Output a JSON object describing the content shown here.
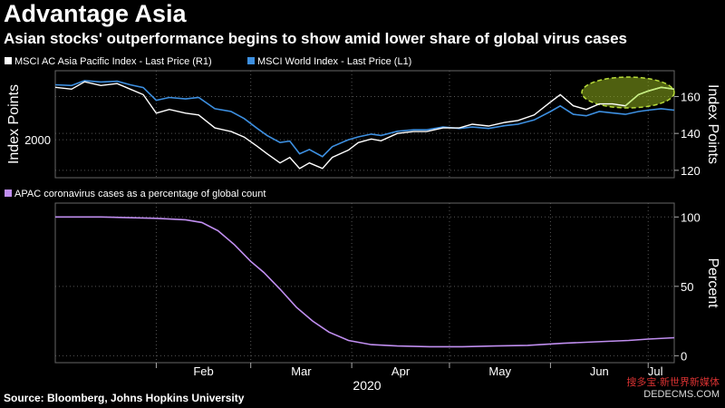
{
  "title": "Advantage Asia",
  "subtitle": "Asian stocks' outperformance begins to show amid lower share of global virus cases",
  "source": "Source: Bloomberg, Johns Hopkins University",
  "watermark": {
    "line1": "搜多宝·新世界新媒体",
    "line2": "DEDECMS.COM"
  },
  "colors": {
    "background": "#000000",
    "asia_line": "#ffffff",
    "world_line": "#3d8fe0",
    "asia_highlight": "#c7f080",
    "cases_line": "#c08ef0",
    "highlight_ellipse": "#b8dc3a",
    "grid": "#555555"
  },
  "chart_data": [
    {
      "type": "line",
      "legend_placement": "top-left",
      "left_axis": {
        "label": "Index Points",
        "ticks": [
          2000
        ],
        "range": [
          1730,
          2490
        ]
      },
      "right_axis": {
        "label": "Index Points",
        "ticks": [
          120,
          140,
          160
        ],
        "range": [
          116,
          174
        ]
      },
      "x_ticks": [
        "Feb",
        "Mar",
        "Apr",
        "May",
        "Jun",
        "Jul"
      ],
      "x_year": "2020",
      "x_range": [
        "2020-01-01",
        "2020-07-09"
      ],
      "grid": true,
      "annotation": "dashed ellipse highlighting late June to July rally",
      "series": [
        {
          "name": "MSCI AC Asia Pacific Index - Last Price (R1)",
          "axis": "right",
          "x": [
            "2020-01-01",
            "2020-01-06",
            "2020-01-10",
            "2020-01-15",
            "2020-01-20",
            "2020-01-24",
            "2020-01-28",
            "2020-02-01",
            "2020-02-05",
            "2020-02-10",
            "2020-02-14",
            "2020-02-19",
            "2020-02-24",
            "2020-02-28",
            "2020-03-03",
            "2020-03-06",
            "2020-03-10",
            "2020-03-13",
            "2020-03-16",
            "2020-03-19",
            "2020-03-23",
            "2020-03-26",
            "2020-03-31",
            "2020-04-03",
            "2020-04-07",
            "2020-04-10",
            "2020-04-15",
            "2020-04-20",
            "2020-04-24",
            "2020-04-29",
            "2020-05-04",
            "2020-05-08",
            "2020-05-13",
            "2020-05-18",
            "2020-05-22",
            "2020-05-27",
            "2020-06-01",
            "2020-06-04",
            "2020-06-08",
            "2020-06-12",
            "2020-06-16",
            "2020-06-20",
            "2020-06-24",
            "2020-06-28",
            "2020-07-01",
            "2020-07-05",
            "2020-07-09"
          ],
          "values": [
            165,
            164,
            168,
            166,
            167,
            164,
            161,
            151,
            153,
            151,
            150,
            143,
            141,
            138,
            133,
            129,
            124,
            127,
            121,
            124,
            121,
            127,
            131,
            135,
            137,
            136,
            140,
            141,
            141,
            143,
            143,
            145,
            144,
            146,
            147,
            150,
            157,
            161,
            155,
            153,
            156,
            156,
            155,
            161,
            163,
            165,
            164
          ]
        },
        {
          "name": "MSCI World Index - Last Price (L1)",
          "axis": "left",
          "x": [
            "2020-01-01",
            "2020-01-06",
            "2020-01-10",
            "2020-01-15",
            "2020-01-20",
            "2020-01-24",
            "2020-01-28",
            "2020-02-01",
            "2020-02-05",
            "2020-02-10",
            "2020-02-14",
            "2020-02-19",
            "2020-02-24",
            "2020-02-28",
            "2020-03-03",
            "2020-03-06",
            "2020-03-10",
            "2020-03-13",
            "2020-03-16",
            "2020-03-19",
            "2020-03-23",
            "2020-03-26",
            "2020-03-31",
            "2020-04-03",
            "2020-04-07",
            "2020-04-10",
            "2020-04-15",
            "2020-04-20",
            "2020-04-24",
            "2020-04-29",
            "2020-05-04",
            "2020-05-08",
            "2020-05-13",
            "2020-05-18",
            "2020-05-22",
            "2020-05-27",
            "2020-06-01",
            "2020-06-04",
            "2020-06-08",
            "2020-06-12",
            "2020-06-16",
            "2020-06-20",
            "2020-06-24",
            "2020-06-28",
            "2020-07-01",
            "2020-07-05",
            "2020-07-09"
          ],
          "values": [
            2390,
            2385,
            2420,
            2410,
            2415,
            2390,
            2370,
            2280,
            2300,
            2290,
            2300,
            2220,
            2200,
            2150,
            2080,
            2030,
            1980,
            1990,
            1900,
            1930,
            1880,
            1950,
            2000,
            2020,
            2040,
            2030,
            2060,
            2070,
            2070,
            2090,
            2080,
            2090,
            2080,
            2100,
            2110,
            2140,
            2200,
            2240,
            2180,
            2170,
            2200,
            2190,
            2180,
            2200,
            2210,
            2220,
            2210
          ]
        }
      ]
    },
    {
      "type": "line",
      "legend_placement": "top-left",
      "right_axis": {
        "label": "Percent",
        "ticks": [
          0,
          50,
          100
        ],
        "range": [
          -5,
          110
        ]
      },
      "x_ticks": [
        "Feb",
        "Mar",
        "Apr",
        "May",
        "Jun",
        "Jul"
      ],
      "x_year": "2020",
      "x_range": [
        "2020-01-01",
        "2020-07-09"
      ],
      "grid": true,
      "series": [
        {
          "name": "APAC coronavirus cases as a percentage of global count",
          "axis": "right",
          "x": [
            "2020-01-01",
            "2020-01-15",
            "2020-02-01",
            "2020-02-10",
            "2020-02-15",
            "2020-02-20",
            "2020-02-25",
            "2020-03-01",
            "2020-03-05",
            "2020-03-10",
            "2020-03-15",
            "2020-03-20",
            "2020-03-25",
            "2020-03-31",
            "2020-04-07",
            "2020-04-15",
            "2020-04-25",
            "2020-05-05",
            "2020-05-15",
            "2020-05-25",
            "2020-06-05",
            "2020-06-15",
            "2020-06-25",
            "2020-07-01",
            "2020-07-09"
          ],
          "values": [
            100,
            100,
            99,
            98,
            96,
            90,
            80,
            68,
            60,
            48,
            35,
            25,
            17,
            11,
            8,
            7,
            6.5,
            6.5,
            7,
            7.5,
            9,
            10,
            11,
            12,
            13
          ]
        }
      ]
    }
  ]
}
